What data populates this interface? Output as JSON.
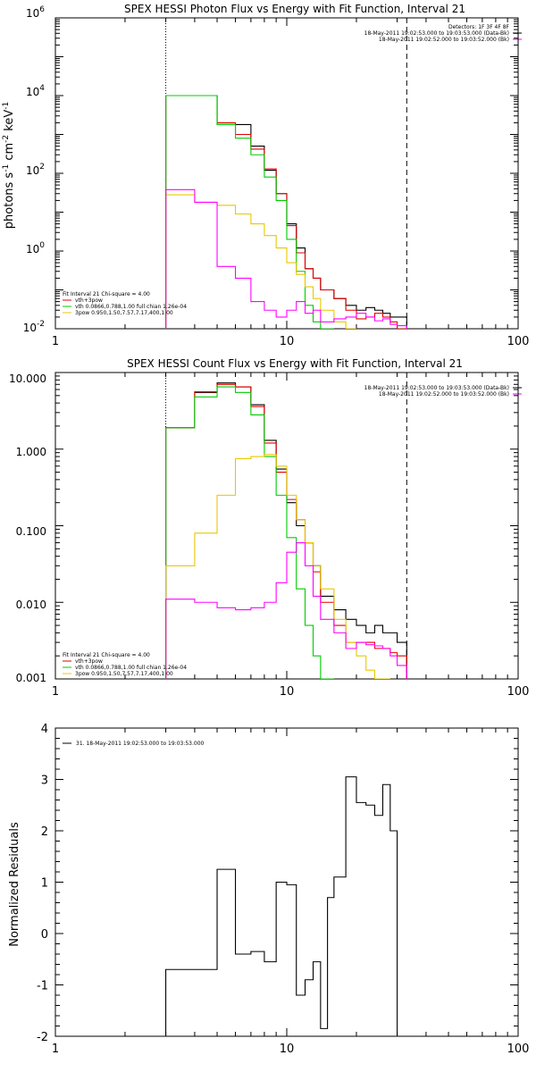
{
  "colors": {
    "data": "#000000",
    "total": "#e00000",
    "vth": "#00cc00",
    "pow": "#e8c800",
    "bk": "#ff00ff"
  },
  "chart_data": [
    {
      "type": "line",
      "title": "SPEX HESSI Photon Flux vs Energy with Fit Function, Interval 21",
      "ylabel_parts": [
        "photons s",
        "cm",
        "keV"
      ],
      "ylabel_exps": [
        "-1",
        "-2",
        "-1"
      ],
      "xscale": "log",
      "yscale": "log",
      "xlim": [
        1,
        100
      ],
      "ylim": [
        0.01,
        1000000
      ],
      "xticks": [
        1,
        10,
        100
      ],
      "xticklabels": [
        "1",
        "10",
        "100"
      ],
      "yticks": [
        0.01,
        1,
        100,
        10000,
        1000000
      ],
      "ytick_base": [
        "10",
        "10",
        "10",
        "10",
        "10"
      ],
      "ytick_exp": [
        "-2",
        "0",
        "2",
        "4",
        "6"
      ],
      "vlines": [
        {
          "x": 3,
          "style": "dotted"
        },
        {
          "x": 33,
          "style": "dashed"
        }
      ],
      "edges": [
        3,
        4,
        5,
        6,
        7,
        8,
        9,
        10,
        11,
        12,
        13,
        14,
        16,
        18,
        20,
        22,
        24,
        26,
        28,
        30,
        33
      ],
      "series": [
        {
          "name": "Data",
          "color": "#000000",
          "values": [
            10000,
            10000,
            1800,
            1800,
            500,
            120,
            30,
            5,
            1.2,
            0.35,
            0.2,
            0.1,
            0.06,
            0.04,
            0.03,
            0.035,
            0.03,
            0.025,
            0.02,
            0.02
          ]
        },
        {
          "name": "vth+3pow",
          "color": "#e00000",
          "values": [
            10000,
            10000,
            2000,
            1000,
            420,
            130,
            30,
            4.5,
            0.9,
            0.35,
            0.2,
            0.1,
            0.06,
            0.03,
            0.018,
            0.02,
            0.025,
            0.02,
            0.015,
            0.01
          ]
        },
        {
          "name": "vth",
          "color": "#00cc00",
          "values": [
            10000,
            10000,
            1800,
            800,
            300,
            80,
            20,
            2,
            0.3,
            0.04,
            0.015,
            0.006
          ]
        },
        {
          "name": "3pow",
          "color": "#e8c800",
          "values": [
            28,
            18,
            15,
            9,
            5,
            2.5,
            1.2,
            0.5,
            0.25,
            0.12,
            0.06,
            0.03,
            0.015,
            0.007
          ]
        },
        {
          "name": "bk",
          "color": "#ff00ff",
          "values": [
            38,
            18,
            0.4,
            0.2,
            0.05,
            0.03,
            0.02,
            0.03,
            0.05,
            0.025,
            0.03,
            0.015,
            0.018,
            0.02,
            0.025,
            0.02,
            0.016,
            0.018,
            0.013,
            0.012
          ]
        }
      ],
      "legend_right_lines": [
        "Detectors: 1F 3F 4F 8F",
        "18-May-2011 19:02:53.000 to 19:03:53.000 (Data-Bk)",
        "18-May-2011 19:02:52.000 to 19:03:52.000 (Bk)"
      ],
      "legend_left_lines": [
        "Fit Interval 21    Chi-square = 4.00",
        "vth+3pow",
        "vth 0.0866,0.788,1.00  full chian 1.26e-04",
        "3pow 0.950,1.50,7.57,7.17,400,1.00"
      ]
    },
    {
      "type": "line",
      "title": "SPEX HESSI Count Flux vs Energy with Fit Function, Interval 21",
      "xscale": "log",
      "yscale": "log",
      "xlim": [
        1,
        100
      ],
      "ylim": [
        0.001,
        10
      ],
      "xticks": [
        1,
        10,
        100
      ],
      "xticklabels": [
        "1",
        "10",
        "100"
      ],
      "yticks": [
        0.001,
        0.01,
        0.1,
        1,
        10
      ],
      "yticklabels": [
        "0.001",
        "0.010",
        "0.100",
        "1.000",
        "10.000"
      ],
      "vlines": [
        {
          "x": 3,
          "style": "dotted"
        },
        {
          "x": 33,
          "style": "dashed"
        }
      ],
      "edges": [
        3,
        4,
        5,
        6,
        7,
        8,
        9,
        10,
        11,
        12,
        13,
        14,
        16,
        18,
        20,
        22,
        24,
        26,
        28,
        30,
        33
      ],
      "series": [
        {
          "name": "Data",
          "color": "#000000",
          "values": [
            1.9,
            5.5,
            7.3,
            6.5,
            3.8,
            1.3,
            0.55,
            0.2,
            0.1,
            0.06,
            0.03,
            0.012,
            0.008,
            0.006,
            0.005,
            0.004,
            0.005,
            0.004,
            0.004,
            0.003
          ]
        },
        {
          "name": "vth+3pow",
          "color": "#e00000",
          "values": [
            1.9,
            5.6,
            7.0,
            6.5,
            3.6,
            1.2,
            0.5,
            0.22,
            0.12,
            0.06,
            0.025,
            0.01,
            0.005,
            0.003,
            0.003,
            0.003,
            0.0025,
            0.0025,
            0.0022,
            0.002
          ]
        },
        {
          "name": "vth",
          "color": "#00cc00",
          "values": [
            1.9,
            4.8,
            6.5,
            5.5,
            2.8,
            0.8,
            0.25,
            0.07,
            0.015,
            0.005,
            0.002,
            0.0006
          ]
        },
        {
          "name": "3pow",
          "color": "#e8c800",
          "values": [
            0.03,
            0.08,
            0.25,
            0.75,
            0.8,
            0.85,
            0.6,
            0.25,
            0.12,
            0.06,
            0.03,
            0.015,
            0.006,
            0.003,
            0.002,
            0.0013,
            0.001,
            0.0008
          ]
        },
        {
          "name": "bk",
          "color": "#ff00ff",
          "values": [
            0.011,
            0.01,
            0.0085,
            0.008,
            0.0085,
            0.01,
            0.018,
            0.045,
            0.06,
            0.03,
            0.012,
            0.006,
            0.004,
            0.0025,
            0.003,
            0.0028,
            0.0027,
            0.0025,
            0.002,
            0.0015
          ]
        }
      ],
      "legend_right_lines": [
        "18-May-2011 19:02:53.000 to 19:03:53.000 (Data-Bk)",
        "18-May-2011 19:02:52.000 to 19:03:52.000 (Bk)"
      ],
      "legend_left_lines": [
        "Fit Interval 21    Chi-square = 4.00",
        "vth+3pow",
        "vth 0.0866,0.788,1.00  full chian 1.26e-04",
        "3pow 0.950,1.50,7.57,7.17,400,1.00"
      ]
    },
    {
      "type": "line",
      "ylabel": "Normalized Residuals",
      "xscale": "log",
      "yscale": "linear",
      "xlim": [
        1,
        100
      ],
      "ylim": [
        -2,
        4
      ],
      "xticks": [
        1,
        10,
        100
      ],
      "xticklabels": [
        "1",
        "10",
        "100"
      ],
      "yticks": [
        -2,
        -1,
        0,
        1,
        2,
        3,
        4
      ],
      "yticklabels": [
        "-2",
        "-1",
        "0",
        "1",
        "2",
        "3",
        "4"
      ],
      "edges": [
        3,
        4,
        5,
        6,
        7,
        8,
        9,
        10,
        11,
        12,
        13,
        14,
        15,
        16,
        18,
        20,
        22,
        24,
        26,
        28,
        30,
        33
      ],
      "series": [
        {
          "name": "31. 18-May-2011 19:02:53.000 to 19:03:53.000",
          "color": "#000000",
          "values": [
            -0.7,
            -0.7,
            1.25,
            -0.4,
            -0.35,
            -0.55,
            1.0,
            0.95,
            -1.2,
            -0.9,
            -0.55,
            -1.85,
            0.7,
            1.1,
            3.05,
            2.55,
            2.5,
            2.3,
            2.9,
            2.0
          ]
        }
      ],
      "legend_left_lines": [
        "31. 18-May-2011 19:02:53.000 to 19:03:53.000"
      ]
    }
  ]
}
